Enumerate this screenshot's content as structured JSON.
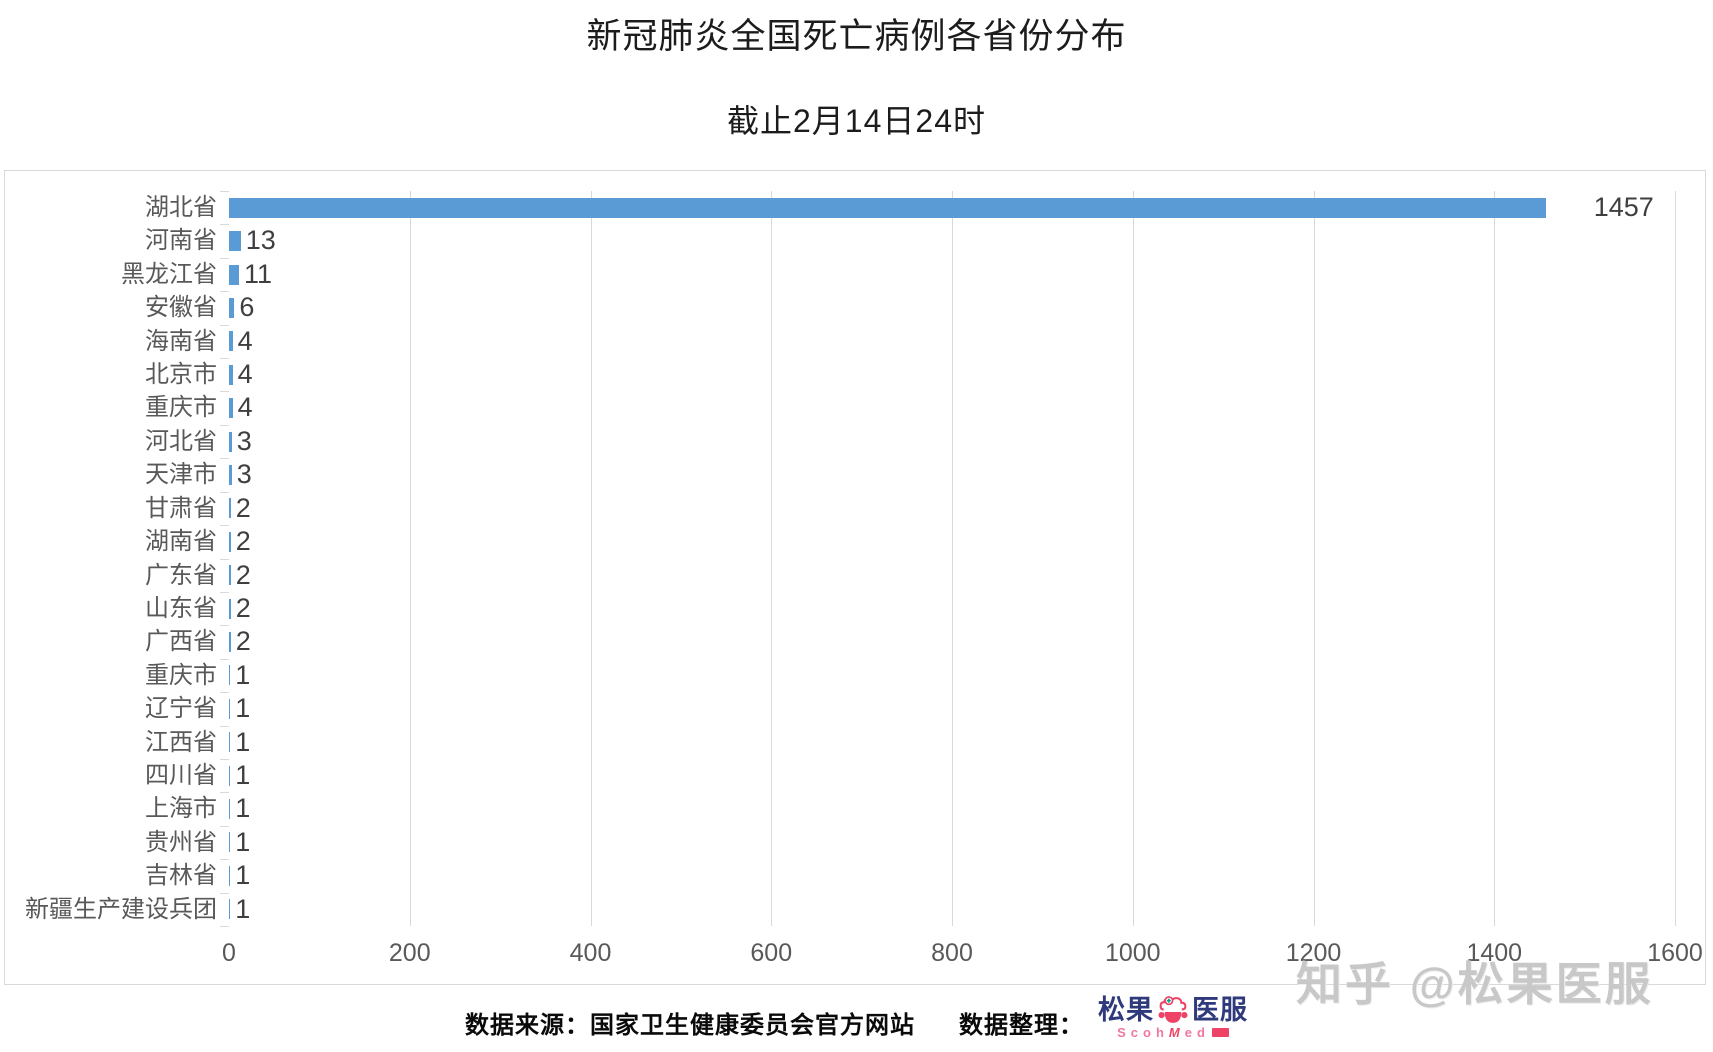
{
  "title": "新冠肺炎全国死亡病例各省份分布",
  "subtitle": "截止2月14日24时",
  "chart_data": {
    "type": "bar",
    "orientation": "horizontal",
    "title": "新冠肺炎全国死亡病例各省份分布",
    "subtitle": "截止2月14日24时",
    "categories": [
      "湖北省",
      "河南省",
      "黑龙江省",
      "安徽省",
      "海南省",
      "北京市",
      "重庆市",
      "河北省",
      "天津市",
      "甘肃省",
      "湖南省",
      "广东省",
      "山东省",
      "广西省",
      "重庆市",
      "辽宁省",
      "江西省",
      "四川省",
      "上海市",
      "贵州省",
      "吉林省",
      "新疆生产建设兵团"
    ],
    "values": [
      1457,
      13,
      11,
      6,
      4,
      4,
      4,
      3,
      3,
      2,
      2,
      2,
      2,
      2,
      1,
      1,
      1,
      1,
      1,
      1,
      1,
      1
    ],
    "xlabel": "",
    "ylabel": "",
    "xlim": [
      0,
      1600
    ],
    "x_ticks": [
      0,
      200,
      400,
      600,
      800,
      1000,
      1200,
      1400,
      1600
    ],
    "grid": true,
    "legend": "none",
    "data_labels": true,
    "bar_color": "#5B9BD5",
    "gridline_color": "#D9D9D9",
    "axis_label_color": "#595959",
    "value_label_color": "#3F3F3F"
  },
  "footer": {
    "source_text": "数据来源：国家卫生健康委员会官方网站",
    "curator_text": "数据整理：",
    "logo": {
      "cn_left": "松果",
      "cn_right": "医服",
      "latin": "ScohMed",
      "icon": "pinecone-cloud-cross-icon",
      "navy_color": "#2F3A7D",
      "pink_color": "#EE4266",
      "light_pink_color": "#F0789E",
      "teal_color": "#0AA08A"
    }
  },
  "watermark": "知乎 @松果医服"
}
